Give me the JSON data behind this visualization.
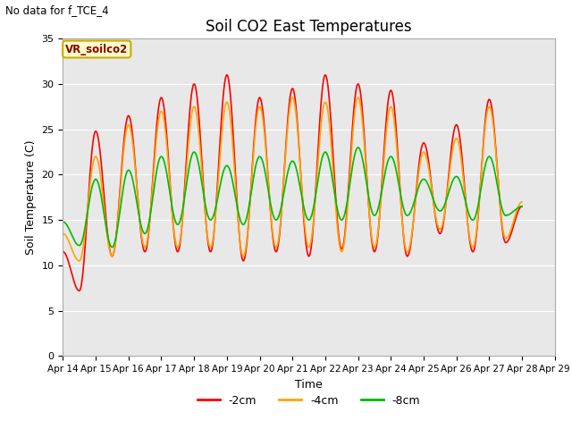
{
  "title": "Soil CO2 East Temperatures",
  "subtitle": "No data for f_TCE_4",
  "xlabel": "Time",
  "ylabel": "Soil Temperature (C)",
  "legend_label": "VR_soilco2",
  "ylim": [
    0,
    35
  ],
  "yticks": [
    0,
    5,
    10,
    15,
    20,
    25,
    30,
    35
  ],
  "x_tick_labels": [
    "Apr 14",
    "Apr 15",
    "Apr 16",
    "Apr 17",
    "Apr 18",
    "Apr 19",
    "Apr 20",
    "Apr 21",
    "Apr 22",
    "Apr 23",
    "Apr 24",
    "Apr 25",
    "Apr 26",
    "Apr 27",
    "Apr 28",
    "Apr 29"
  ],
  "color_2cm": "#ff0000",
  "color_4cm": "#ffa500",
  "color_8cm": "#00bb00",
  "bg_color": "#e8e8e8",
  "series_labels": [
    "-2cm",
    "-4cm",
    "-8cm"
  ],
  "day_peaks_2cm": [
    11.5,
    7.2,
    24.8,
    11.0,
    26.5,
    11.5,
    28.5,
    11.5,
    30.0,
    11.5,
    31.0,
    10.5,
    28.5,
    11.5,
    29.5,
    11.0,
    31.0,
    11.8,
    30.0,
    11.5,
    29.3,
    11.0,
    23.5,
    13.5,
    25.5,
    11.5,
    28.3,
    12.5,
    16.5
  ],
  "day_peaks_4cm": [
    13.5,
    10.5,
    22.0,
    11.0,
    25.5,
    12.0,
    27.0,
    12.0,
    27.5,
    12.0,
    28.0,
    11.0,
    27.5,
    12.0,
    28.5,
    12.0,
    28.0,
    11.5,
    28.5,
    12.0,
    27.5,
    11.5,
    22.5,
    14.0,
    24.0,
    12.0,
    27.5,
    13.0,
    17.0
  ],
  "day_peaks_8cm": [
    14.8,
    12.2,
    19.5,
    12.0,
    20.5,
    13.5,
    22.0,
    14.5,
    22.5,
    15.0,
    21.0,
    14.5,
    22.0,
    15.0,
    21.5,
    15.0,
    22.5,
    15.0,
    23.0,
    15.5,
    22.0,
    15.5,
    19.5,
    16.0,
    19.8,
    15.0,
    22.0,
    15.5,
    16.5
  ]
}
